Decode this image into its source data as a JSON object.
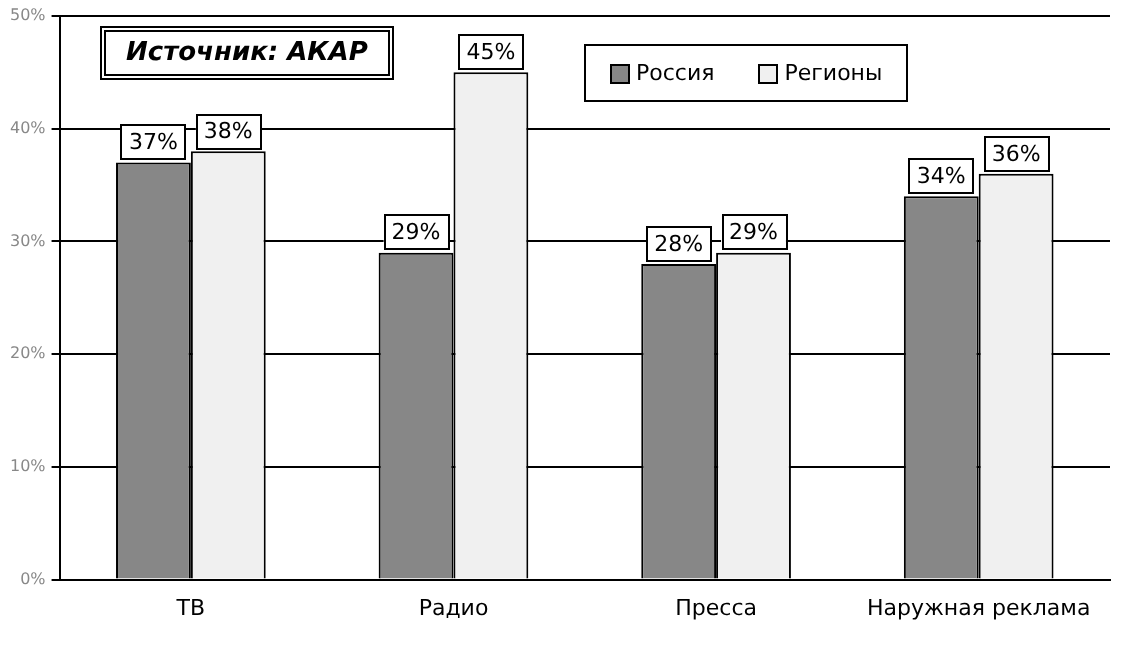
{
  "chart_data": {
    "type": "bar",
    "categories": [
      "ТВ",
      "Радио",
      "Пресса",
      "Наружная реклама"
    ],
    "series": [
      {
        "name": "Россия",
        "color": "#878787",
        "values": [
          37,
          29,
          28,
          34
        ],
        "value_labels": [
          "37%",
          "29%",
          "28%",
          "34%"
        ]
      },
      {
        "name": "Регионы",
        "color": "#f0f0f0",
        "values": [
          38,
          45,
          29,
          36
        ],
        "value_labels": [
          "38%",
          "45%",
          "29%",
          "36%"
        ]
      }
    ],
    "ylim": [
      0,
      50
    ],
    "yticks": [
      {
        "value": 0,
        "label": "0%"
      },
      {
        "value": 10,
        "label": "10%"
      },
      {
        "value": 20,
        "label": "20%"
      },
      {
        "value": 30,
        "label": "30%"
      },
      {
        "value": 40,
        "label": "40%"
      },
      {
        "value": 50,
        "label": "50%"
      }
    ],
    "grid": "y",
    "legend": "top",
    "annotations": [
      "Источник: АКАР"
    ]
  }
}
